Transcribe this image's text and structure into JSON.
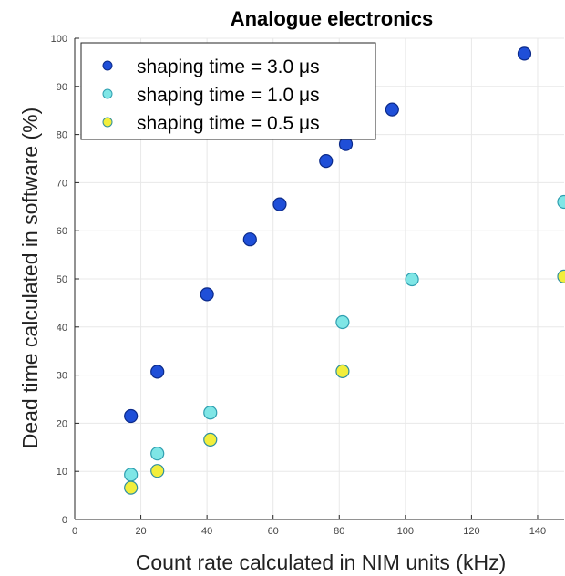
{
  "chart_data": {
    "type": "scatter",
    "title": "Analogue electronics",
    "xlabel": "Count rate calculated in NIM units (kHz)",
    "ylabel": "Dead time calculated in software (%)",
    "xlim": [
      0,
      148
    ],
    "ylim": [
      0,
      100
    ],
    "xticks": [
      0,
      20,
      40,
      60,
      80,
      100,
      120,
      140
    ],
    "yticks": [
      0,
      10,
      20,
      30,
      40,
      50,
      60,
      70,
      80,
      90,
      100
    ],
    "grid": true,
    "legend_position": "top-left",
    "series": [
      {
        "name": "shaping time = 3.0  μs",
        "color": "#1f4fd8",
        "edge": "#0b2a8a",
        "points": [
          {
            "x": 17,
            "y": 21.5
          },
          {
            "x": 25,
            "y": 30.7
          },
          {
            "x": 40,
            "y": 46.8
          },
          {
            "x": 53,
            "y": 58.2
          },
          {
            "x": 62,
            "y": 65.5
          },
          {
            "x": 76,
            "y": 74.5
          },
          {
            "x": 82,
            "y": 78.0
          },
          {
            "x": 96,
            "y": 85.2
          },
          {
            "x": 136,
            "y": 96.8
          }
        ]
      },
      {
        "name": "shaping time = 1.0  μs",
        "color": "#7fe6e6",
        "edge": "#2f9fb0",
        "points": [
          {
            "x": 17,
            "y": 9.3
          },
          {
            "x": 25,
            "y": 13.7
          },
          {
            "x": 41,
            "y": 22.2
          },
          {
            "x": 81,
            "y": 41.0
          },
          {
            "x": 102,
            "y": 49.9
          },
          {
            "x": 148,
            "y": 66.0
          }
        ]
      },
      {
        "name": "shaping time = 0.5  μs",
        "color": "#f2ee3c",
        "edge": "#2f8f9f",
        "points": [
          {
            "x": 17,
            "y": 6.6
          },
          {
            "x": 25,
            "y": 10.1
          },
          {
            "x": 41,
            "y": 16.6
          },
          {
            "x": 81,
            "y": 30.8
          },
          {
            "x": 148,
            "y": 50.5
          }
        ]
      }
    ]
  }
}
